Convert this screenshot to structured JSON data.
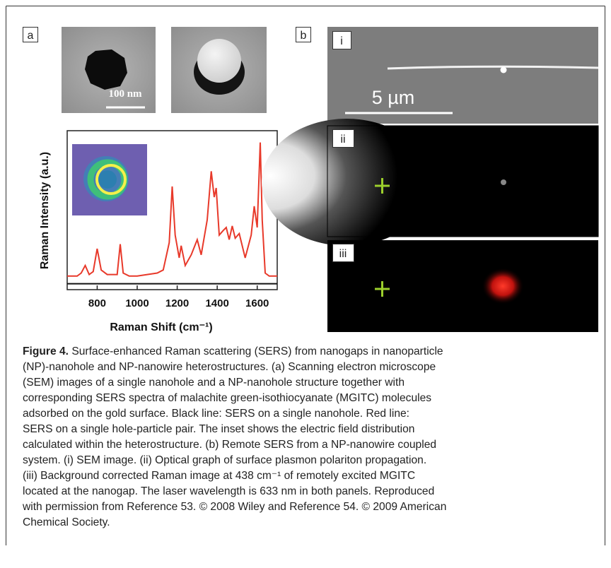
{
  "panel_a": {
    "label": "a",
    "scale_bar": "100 nm"
  },
  "panel_b": {
    "label": "b",
    "sub_labels": [
      "i",
      "ii",
      "iii"
    ],
    "scale_bar": "5 µm"
  },
  "chart_data": {
    "type": "line",
    "xlabel": "Raman Shift (cm⁻¹)",
    "ylabel": "Raman Intensity (a.u.)",
    "x": [
      650,
      700,
      720,
      740,
      760,
      780,
      800,
      820,
      850,
      900,
      915,
      930,
      960,
      1000,
      1050,
      1100,
      1130,
      1160,
      1175,
      1190,
      1210,
      1220,
      1240,
      1270,
      1300,
      1320,
      1350,
      1370,
      1385,
      1395,
      1410,
      1430,
      1445,
      1460,
      1475,
      1490,
      1510,
      1540,
      1570,
      1585,
      1600,
      1615,
      1625,
      1640,
      1660,
      1700
    ],
    "series": [
      {
        "color": "#e8392a",
        "values": [
          8,
          8,
          10,
          15,
          9,
          11,
          26,
          12,
          9,
          9,
          29,
          10,
          8,
          8,
          9,
          10,
          12,
          30,
          67,
          35,
          20,
          28,
          15,
          22,
          32,
          22,
          45,
          77,
          60,
          66,
          35,
          38,
          40,
          32,
          41,
          33,
          36,
          20,
          35,
          54,
          40,
          96,
          45,
          10,
          8,
          8
        ]
      },
      {
        "color": "#111111",
        "values": [
          3,
          3,
          3,
          3,
          3,
          3,
          3,
          3,
          3,
          3,
          3,
          3,
          3,
          3,
          3,
          3,
          3,
          3,
          3,
          3,
          3,
          3,
          3,
          3,
          3,
          3,
          3,
          3,
          3,
          3,
          3,
          3,
          3,
          3,
          3,
          3,
          3,
          3,
          3,
          3,
          3,
          3,
          3,
          3,
          3,
          3
        ]
      }
    ],
    "xlim": [
      650,
      1700
    ],
    "ylim": [
      0,
      100
    ],
    "xticks": [
      800,
      1000,
      1200,
      1400,
      1600
    ]
  },
  "caption": {
    "label": "Figure 4.",
    "lines": [
      " Surface-enhanced Raman scattering (SERS) from nanogaps in nanoparticle",
      "(NP)-nanohole and NP-nanowire heterostructures. (a) Scanning electron microscope",
      "(SEM) images of a single nanohole and a NP-nanohole structure together with",
      "corresponding SERS spectra of malachite green-isothiocyanate (MGITC) molecules",
      "adsorbed on the gold surface. Black line: SERS on a single nanohole. Red line:",
      "SERS on a single hole-particle pair. The inset shows the electric field distribution",
      "calculated within the heterostructure. (b) Remote SERS from a NP-nanowire coupled",
      "system. (i) SEM image. (ii) Optical graph of surface plasmon polariton propagation.",
      "(iii) Background corrected Raman image at 438 cm⁻¹ of remotely excited MGITC",
      "located at the nanogap. The laser wavelength is 633 nm in both panels. Reproduced",
      "with permission from Reference 53. © 2008 Wiley and Reference 54. © 2009 American",
      "Chemical Society."
    ]
  }
}
